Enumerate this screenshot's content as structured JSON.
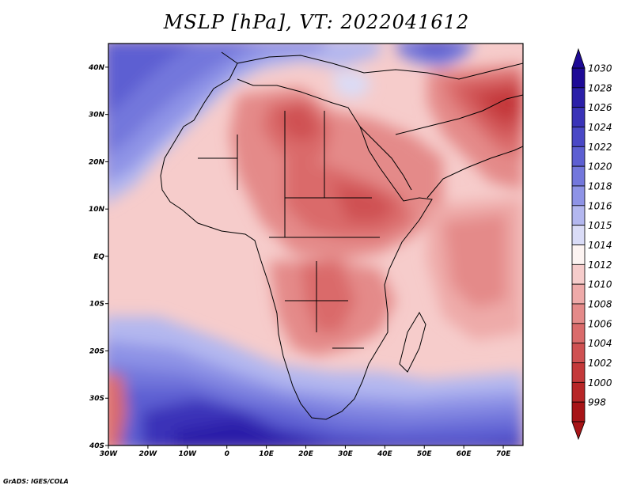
{
  "title": "MSLP [hPa], VT: 2022041612",
  "credit": "GrADS: IGES/COLA",
  "map": {
    "lon_range": [
      -30,
      75
    ],
    "lat_range": [
      -40,
      45
    ],
    "lon_ticks": [
      {
        "value": -30,
        "label": "30W"
      },
      {
        "value": -20,
        "label": "20W"
      },
      {
        "value": -10,
        "label": "10W"
      },
      {
        "value": 0,
        "label": "0"
      },
      {
        "value": 10,
        "label": "10E"
      },
      {
        "value": 20,
        "label": "20E"
      },
      {
        "value": 30,
        "label": "30E"
      },
      {
        "value": 40,
        "label": "40E"
      },
      {
        "value": 50,
        "label": "50E"
      },
      {
        "value": 60,
        "label": "60E"
      },
      {
        "value": 70,
        "label": "70E"
      }
    ],
    "lat_ticks": [
      {
        "value": 40,
        "label": "40N"
      },
      {
        "value": 30,
        "label": "30N"
      },
      {
        "value": 20,
        "label": "20N"
      },
      {
        "value": 10,
        "label": "10N"
      },
      {
        "value": 0,
        "label": "EQ"
      },
      {
        "value": -10,
        "label": "10S"
      },
      {
        "value": -20,
        "label": "20S"
      },
      {
        "value": -30,
        "label": "30S"
      },
      {
        "value": -40,
        "label": "40S"
      }
    ]
  },
  "colorbar": {
    "levels": [
      {
        "label": "1030",
        "color": "#1e0a96"
      },
      {
        "label": "1028",
        "color": "#2b1fa8"
      },
      {
        "label": "1026",
        "color": "#3a33b8"
      },
      {
        "label": "1024",
        "color": "#4a48c6"
      },
      {
        "label": "1022",
        "color": "#5d5fd2"
      },
      {
        "label": "1020",
        "color": "#7377dc"
      },
      {
        "label": "1018",
        "color": "#8e93e6"
      },
      {
        "label": "1016",
        "color": "#b3b7ef"
      },
      {
        "label": "1015",
        "color": "#dadcf7"
      },
      {
        "label": "1014",
        "color": "#fdf4f2"
      },
      {
        "label": "1012",
        "color": "#f6cccb"
      },
      {
        "label": "1010",
        "color": "#eeaaa9"
      },
      {
        "label": "1008",
        "color": "#e48a89"
      },
      {
        "label": "1006",
        "color": "#da6b6b"
      },
      {
        "label": "1004",
        "color": "#cf5152"
      },
      {
        "label": "1002",
        "color": "#c4393a"
      },
      {
        "label": "1000",
        "color": "#b72627"
      },
      {
        "label": "998",
        "color": "#a71417"
      }
    ]
  }
}
